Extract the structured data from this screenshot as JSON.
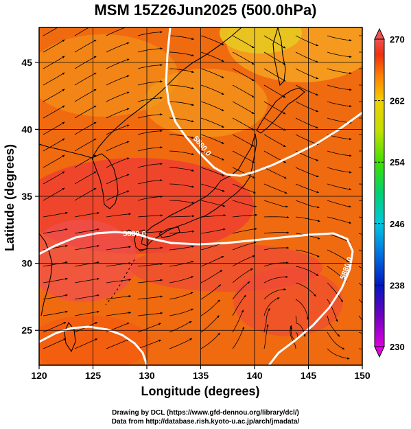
{
  "title": "MSM 15Z26Jun2025 (500.0hPa)",
  "axes": {
    "xlabel": "Longitude (degrees)",
    "ylabel": "Latitude  (degrees)",
    "xlim": [
      120,
      150
    ],
    "ylim": [
      22.4,
      47.6
    ],
    "xticks": [
      120,
      125,
      130,
      135,
      140,
      145,
      150
    ],
    "yticks": [
      25,
      30,
      35,
      40,
      45
    ]
  },
  "colorbar": {
    "min": 230,
    "max": 270,
    "ticks": [
      230,
      238,
      246,
      254,
      262,
      270
    ],
    "colors": [
      "#e000e0",
      "#7000c0",
      "#0018c0",
      "#0070e0",
      "#00c8e0",
      "#00d070",
      "#40e000",
      "#c0e000",
      "#f0d000",
      "#ff8000",
      "#f03010",
      "#f05050"
    ]
  },
  "contours": {
    "level_label": "5880.0",
    "color": "#ffffff"
  },
  "credits": {
    "line1": "Drawing by DCL (https://www.gfd-dennou.org/library/dcl/)",
    "line2": "Data from http://database.rish.kyoto-u.ac.jp/arch/jmadata/"
  }
}
